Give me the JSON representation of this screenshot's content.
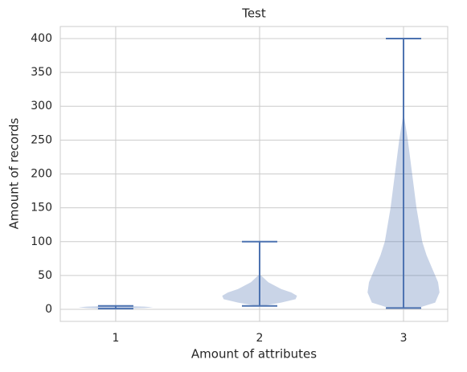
{
  "chart_data": {
    "type": "violin",
    "title": "Test",
    "x_label": "Amount of attributes",
    "y_label": "Amount of records",
    "color": "#4c72b0",
    "grid": true,
    "xlim": [
      0.615,
      3.307
    ],
    "xticks": [
      1,
      2,
      3
    ],
    "ylim": [
      -17.8,
      417.8
    ],
    "yticks": [
      0,
      50,
      100,
      150,
      200,
      250,
      300,
      350,
      400
    ],
    "series": [
      {
        "x": 1,
        "min": 1,
        "max": 5,
        "kde": {
          "y": [
            1,
            2,
            3,
            4,
            5
          ],
          "width": [
            0.05,
            0.2,
            0.26,
            0.2,
            0.05
          ]
        }
      },
      {
        "x": 2,
        "min": 5,
        "max": 100,
        "kde": {
          "y": [
            5,
            10,
            15,
            20,
            25,
            30,
            40,
            50
          ],
          "width": [
            0.02,
            0.15,
            0.25,
            0.26,
            0.22,
            0.15,
            0.06,
            0.01
          ]
        }
      },
      {
        "x": 3,
        "min": 2,
        "max": 400,
        "kde": {
          "y": [
            2,
            10,
            25,
            40,
            60,
            80,
            100,
            150,
            200,
            250,
            290
          ],
          "width": [
            0.1,
            0.22,
            0.25,
            0.24,
            0.2,
            0.16,
            0.13,
            0.09,
            0.06,
            0.03,
            0
          ]
        }
      }
    ]
  }
}
